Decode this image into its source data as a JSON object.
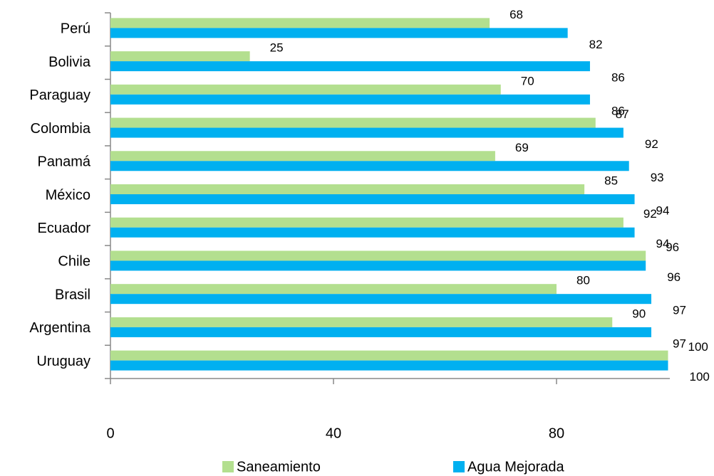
{
  "chart_data": {
    "type": "bar",
    "orientation": "horizontal",
    "categories": [
      "Perú",
      "Bolivia",
      "Paraguay",
      "Colombia",
      "Panamá",
      "México",
      "Ecuador",
      "Chile",
      "Brasil",
      "Argentina",
      "Uruguay"
    ],
    "series": [
      {
        "name": "Saneamiento",
        "color": "#b3df8f",
        "values": [
          68,
          25,
          70,
          87,
          69,
          85,
          92,
          96,
          80,
          90,
          100
        ]
      },
      {
        "name": "Agua Mejorada",
        "color": "#00b0f0",
        "values": [
          82,
          86,
          86,
          92,
          93,
          94,
          94,
          96,
          97,
          97,
          100
        ]
      }
    ],
    "xlim": [
      0,
      100
    ],
    "xticks": [
      0,
      40,
      80
    ],
    "grid": false,
    "legend": "bottom"
  }
}
